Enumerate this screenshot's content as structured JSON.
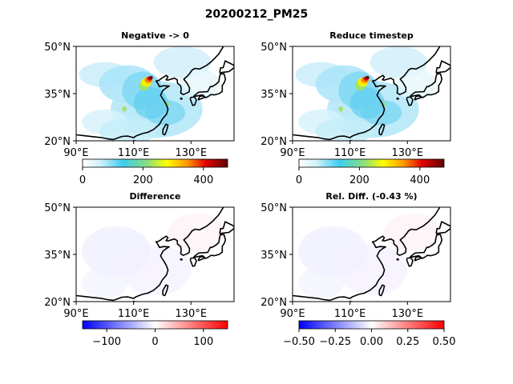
{
  "figure": {
    "suptitle": "20200212_PM25"
  },
  "chart_data": [
    {
      "type": "heatmap",
      "title": "Negative -> 0",
      "map_extent": {
        "lon": [
          90,
          145
        ],
        "lat": [
          20,
          50
        ]
      },
      "x_ticks": [
        "90°E",
        "110°E",
        "130°E"
      ],
      "x_tick_values": [
        90,
        110,
        130
      ],
      "y_ticks": [
        "50°N",
        "35°N",
        "20°N"
      ],
      "y_tick_values": [
        50,
        35,
        20
      ],
      "colormap": "jet",
      "colorbar": {
        "range": [
          0,
          480
        ],
        "ticks": [
          0,
          200,
          400
        ],
        "tick_labels": [
          "0",
          "200",
          "400"
        ]
      },
      "field_peak": {
        "lon": 115,
        "lat": 39,
        "value": 470
      }
    },
    {
      "type": "heatmap",
      "title": "Reduce timestep",
      "map_extent": {
        "lon": [
          90,
          145
        ],
        "lat": [
          20,
          50
        ]
      },
      "x_ticks": [
        "90°E",
        "110°E",
        "130°E"
      ],
      "x_tick_values": [
        90,
        110,
        130
      ],
      "y_ticks": [
        "50°N",
        "35°N",
        "20°N"
      ],
      "y_tick_values": [
        50,
        35,
        20
      ],
      "colormap": "jet",
      "colorbar": {
        "range": [
          0,
          480
        ],
        "ticks": [
          0,
          200,
          400
        ],
        "tick_labels": [
          "0",
          "200",
          "400"
        ]
      },
      "field_peak": {
        "lon": 115,
        "lat": 39,
        "value": 470
      }
    },
    {
      "type": "heatmap",
      "title": "Difference",
      "map_extent": {
        "lon": [
          90,
          145
        ],
        "lat": [
          20,
          50
        ]
      },
      "x_ticks": [
        "90°E",
        "110°E",
        "130°E"
      ],
      "x_tick_values": [
        90,
        110,
        130
      ],
      "y_ticks": [
        "50°N",
        "35°N",
        "20°N"
      ],
      "y_tick_values": [
        50,
        35,
        20
      ],
      "colormap": "bwr",
      "colorbar": {
        "range": [
          -150,
          150
        ],
        "ticks": [
          -100,
          0,
          100
        ],
        "tick_labels": [
          "−100",
          "0",
          "100"
        ]
      }
    },
    {
      "type": "heatmap",
      "title": "Rel. Diff.  (-0.43 %)",
      "map_extent": {
        "lon": [
          90,
          145
        ],
        "lat": [
          20,
          50
        ]
      },
      "x_ticks": [
        "90°E",
        "110°E",
        "130°E"
      ],
      "x_tick_values": [
        90,
        110,
        130
      ],
      "y_ticks": [
        "50°N",
        "35°N",
        "20°N"
      ],
      "y_tick_values": [
        50,
        35,
        20
      ],
      "colormap": "bwr",
      "colorbar": {
        "range": [
          -0.5,
          0.5
        ],
        "ticks": [
          -0.5,
          -0.25,
          0,
          0.25,
          0.5
        ],
        "tick_labels": [
          "−0.50",
          "−0.25",
          "0.00",
          "0.25",
          "0.50"
        ]
      }
    }
  ]
}
